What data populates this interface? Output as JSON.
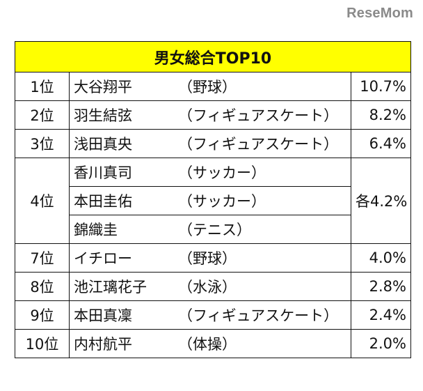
{
  "logo": "ReseMom",
  "table": {
    "header": "男女総合TOP10",
    "rows": [
      {
        "rank": "1位",
        "entries": [
          {
            "name": "大谷翔平",
            "sport": "（野球）"
          }
        ],
        "percent": "10.7%"
      },
      {
        "rank": "2位",
        "entries": [
          {
            "name": "羽生結弦",
            "sport": "（フィギュアスケート）"
          }
        ],
        "percent": "8.2%"
      },
      {
        "rank": "3位",
        "entries": [
          {
            "name": "浅田真央",
            "sport": "（フィギュアスケート）"
          }
        ],
        "percent": "6.4%"
      },
      {
        "rank": "4位",
        "entries": [
          {
            "name": "香川真司",
            "sport": "（サッカー）"
          },
          {
            "name": "本田圭佑",
            "sport": "（サッカー）"
          },
          {
            "name": "錦織圭",
            "sport": "（テニス）"
          }
        ],
        "percent": "各4.2%"
      },
      {
        "rank": "7位",
        "entries": [
          {
            "name": "イチロー",
            "sport": "（野球）"
          }
        ],
        "percent": "4.0%"
      },
      {
        "rank": "8位",
        "entries": [
          {
            "name": "池江璃花子",
            "sport": "（水泳）"
          }
        ],
        "percent": "2.8%"
      },
      {
        "rank": "9位",
        "entries": [
          {
            "name": "本田真凜",
            "sport": "（フィギュアスケート）"
          }
        ],
        "percent": "2.4%"
      },
      {
        "rank": "10位",
        "entries": [
          {
            "name": "内村航平",
            "sport": "（体操）"
          }
        ],
        "percent": "2.0%"
      }
    ]
  }
}
